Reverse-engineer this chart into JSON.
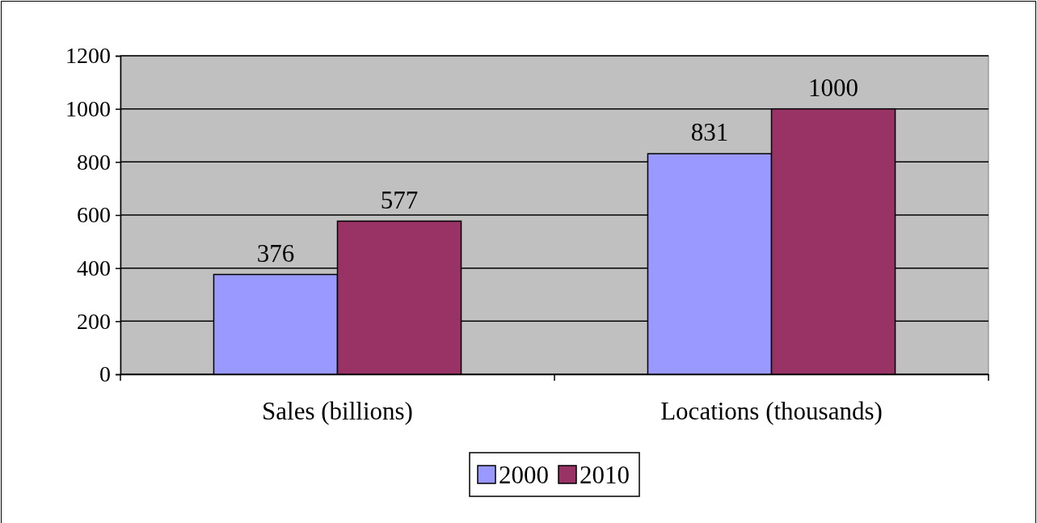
{
  "chart_data": {
    "type": "bar",
    "categories": [
      "Sales (billions)",
      "Locations (thousands)"
    ],
    "series": [
      {
        "name": "2000",
        "color": "#9999ff",
        "values": [
          376,
          831
        ]
      },
      {
        "name": "2010",
        "color": "#993366",
        "values": [
          577,
          1000
        ]
      }
    ],
    "ylim": [
      0,
      1200
    ],
    "yticks": [
      0,
      200,
      400,
      600,
      800,
      1000,
      1200
    ],
    "grid": "y",
    "legend": "bottom",
    "data_labels": true
  }
}
